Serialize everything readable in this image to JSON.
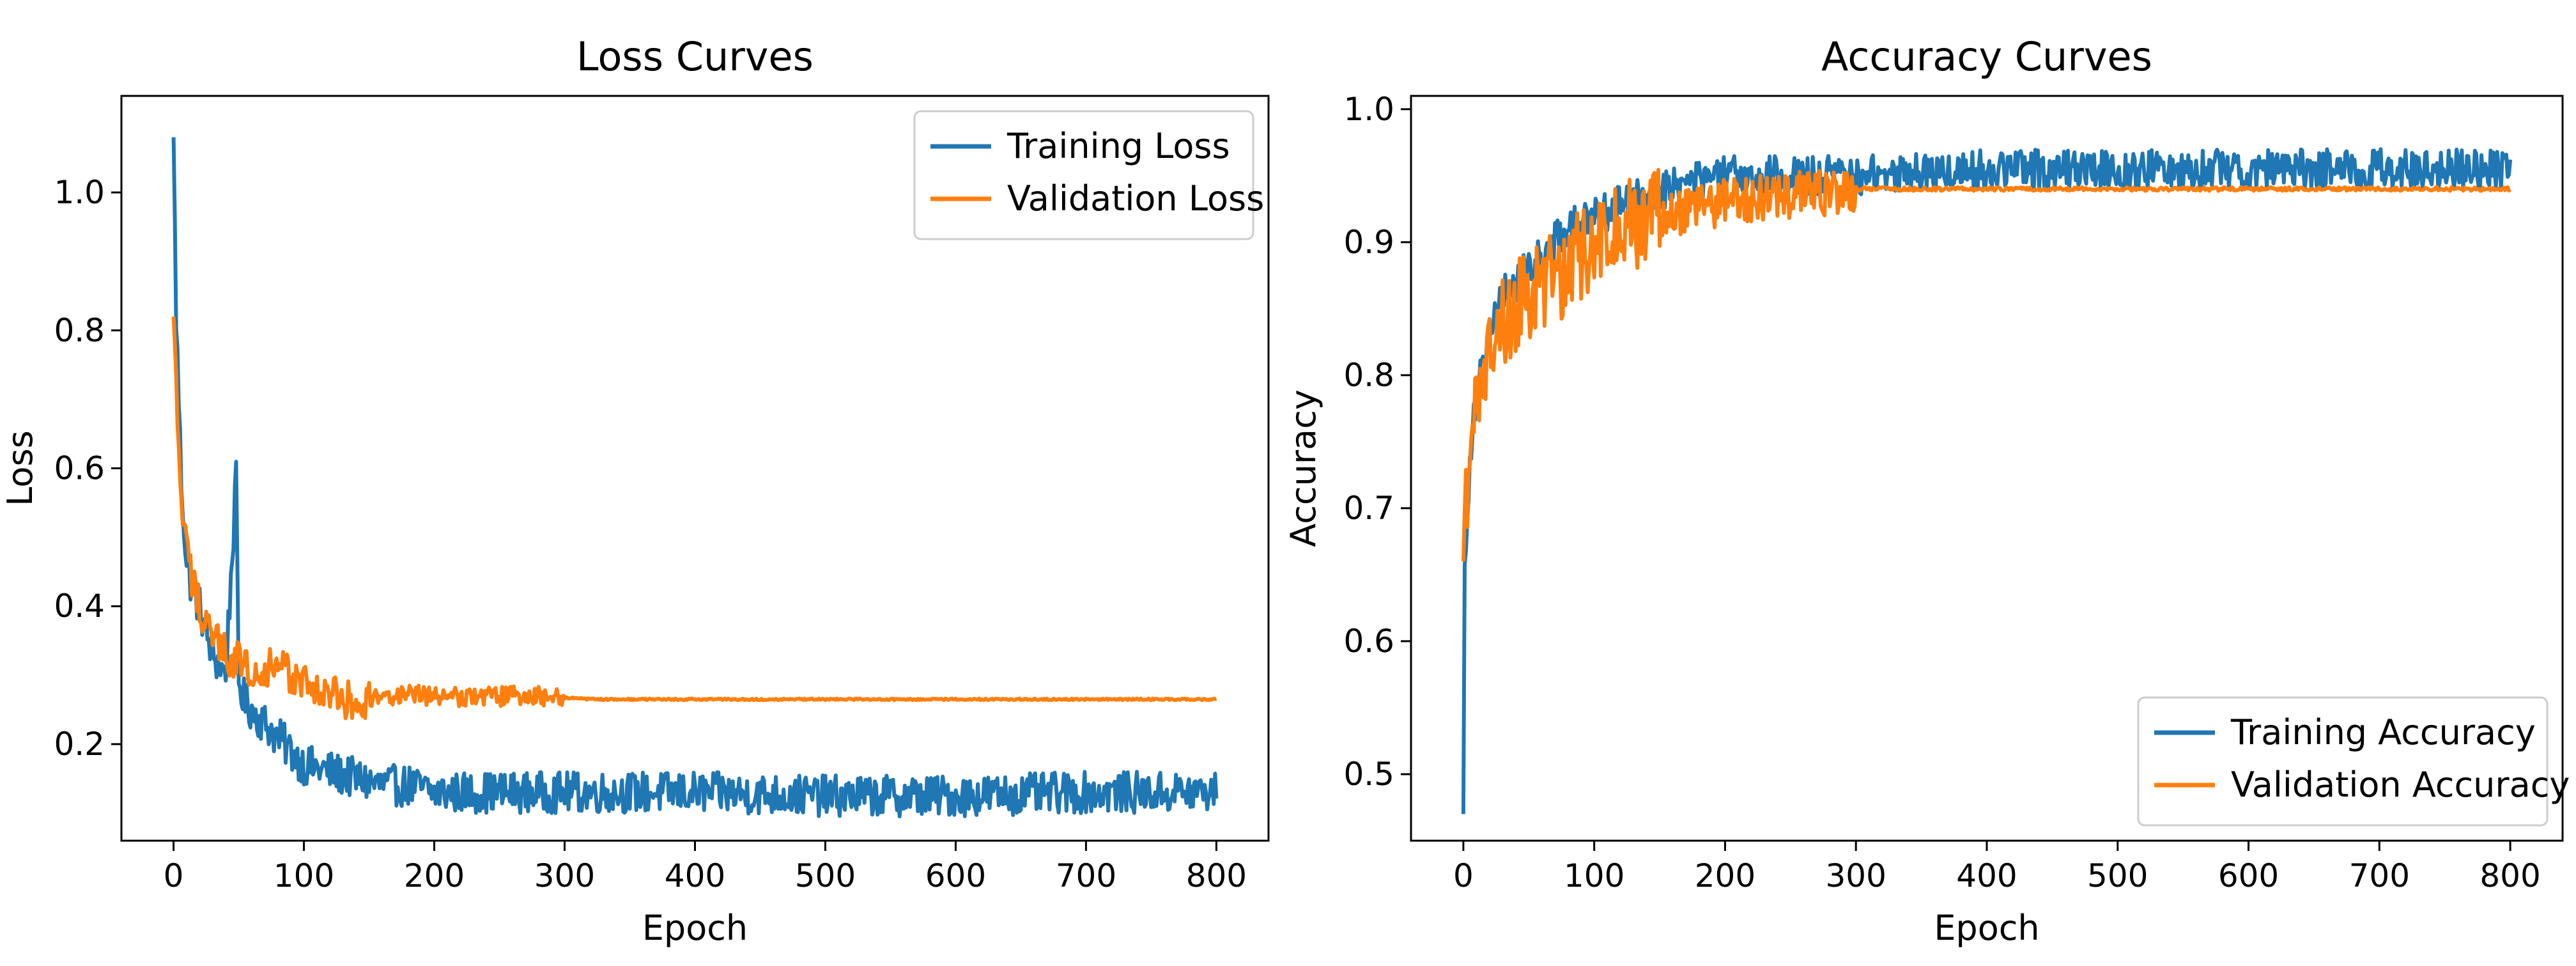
{
  "chart_data": [
    {
      "type": "line",
      "title": "Loss Curves",
      "xlabel": "Epoch",
      "ylabel": "Loss",
      "xlim": [
        -40,
        840
      ],
      "ylim": [
        0.06,
        1.14
      ],
      "xticks": [
        0,
        100,
        200,
        300,
        400,
        500,
        600,
        700,
        800
      ],
      "xtick_labels": [
        "0",
        "100",
        "200",
        "300",
        "400",
        "500",
        "600",
        "700",
        "800"
      ],
      "yticks": [
        0.2,
        0.4,
        0.6,
        0.8,
        1.0
      ],
      "ytick_labels": [
        "0.2",
        "0.4",
        "0.6",
        "0.8",
        "1.0"
      ],
      "legend": {
        "position": "upper right"
      },
      "series": [
        {
          "name": "Training Loss",
          "color": "#1f77b4",
          "x": [
            0,
            2,
            4,
            6,
            8,
            10,
            15,
            20,
            25,
            30,
            40,
            48,
            50,
            55,
            60,
            70,
            80,
            90,
            100,
            120,
            140,
            160,
            180,
            200,
            250,
            300,
            350,
            400,
            500,
            600,
            700,
            750,
            800
          ],
          "y": [
            1.08,
            0.82,
            0.7,
            0.58,
            0.52,
            0.46,
            0.42,
            0.4,
            0.36,
            0.33,
            0.3,
            0.58,
            0.29,
            0.26,
            0.25,
            0.23,
            0.21,
            0.19,
            0.17,
            0.16,
            0.15,
            0.14,
            0.14,
            0.13,
            0.13,
            0.13,
            0.13,
            0.13,
            0.125,
            0.125,
            0.13,
            0.13,
            0.13
          ],
          "noise": 0.03
        },
        {
          "name": "Validation Loss",
          "color": "#ff7f0e",
          "x": [
            0,
            3,
            6,
            10,
            15,
            20,
            30,
            40,
            50,
            60,
            80,
            100,
            120,
            140,
            160,
            180,
            200,
            240,
            280,
            320,
            360,
            400,
            800
          ],
          "y": [
            0.82,
            0.66,
            0.55,
            0.48,
            0.43,
            0.4,
            0.36,
            0.33,
            0.32,
            0.31,
            0.31,
            0.29,
            0.27,
            0.26,
            0.27,
            0.27,
            0.27,
            0.27,
            0.27,
            0.265,
            0.265,
            0.265,
            0.265
          ],
          "noise": 0.03,
          "noise_decay_epoch": 300
        }
      ]
    },
    {
      "type": "line",
      "title": "Accuracy Curves",
      "xlabel": "Epoch",
      "ylabel": "Accuracy",
      "xlim": [
        -40,
        840
      ],
      "ylim": [
        0.45,
        1.01
      ],
      "xticks": [
        0,
        100,
        200,
        300,
        400,
        500,
        600,
        700,
        800
      ],
      "xtick_labels": [
        "0",
        "100",
        "200",
        "300",
        "400",
        "500",
        "600",
        "700",
        "800"
      ],
      "yticks": [
        0.5,
        0.6,
        0.7,
        0.8,
        0.9,
        1.0
      ],
      "ytick_labels": [
        "0.5",
        "0.6",
        "0.7",
        "0.8",
        "0.9",
        "1.0"
      ],
      "legend": {
        "position": "lower right"
      },
      "series": [
        {
          "name": "Training Accuracy",
          "color": "#1f77b4",
          "x": [
            0,
            1,
            3,
            5,
            8,
            12,
            20,
            30,
            50,
            80,
            100,
            150,
            200,
            250,
            300,
            400,
            500,
            600,
            700,
            800
          ],
          "y": [
            0.47,
            0.65,
            0.7,
            0.74,
            0.77,
            0.8,
            0.83,
            0.86,
            0.88,
            0.91,
            0.92,
            0.94,
            0.95,
            0.95,
            0.95,
            0.955,
            0.955,
            0.955,
            0.955,
            0.955
          ],
          "noise": 0.015
        },
        {
          "name": "Validation Accuracy",
          "color": "#ff7f0e",
          "x": [
            0,
            5,
            10,
            20,
            30,
            50,
            80,
            100,
            120,
            150,
            200,
            250,
            300,
            800
          ],
          "y": [
            0.66,
            0.76,
            0.79,
            0.82,
            0.84,
            0.86,
            0.88,
            0.9,
            0.91,
            0.92,
            0.93,
            0.935,
            0.94,
            0.94
          ],
          "noise": 0.035,
          "noise_decay_epoch": 300
        }
      ]
    }
  ]
}
